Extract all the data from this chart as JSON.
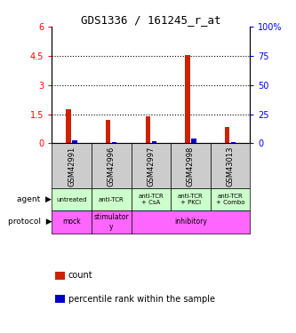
{
  "title": "GDS1336 / 161245_r_at",
  "samples": [
    "GSM42991",
    "GSM42996",
    "GSM42997",
    "GSM42998",
    "GSM43013"
  ],
  "count_values": [
    1.75,
    1.2,
    1.4,
    4.55,
    0.85
  ],
  "percentile_values": [
    3.0,
    1.5,
    2.0,
    4.0,
    1.2
  ],
  "ylim_left": [
    0,
    6
  ],
  "ylim_right": [
    0,
    100
  ],
  "yticks_left": [
    0,
    1.5,
    3.0,
    4.5,
    6.0
  ],
  "yticks_right": [
    0,
    25,
    50,
    75,
    100
  ],
  "ytick_labels_left": [
    "0",
    "1.5",
    "3",
    "4.5",
    "6"
  ],
  "ytick_labels_right": [
    "0",
    "25",
    "50",
    "75",
    "100%"
  ],
  "bar_color_count": "#cc2200",
  "bar_color_percentile": "#0000cc",
  "bar_width": 0.12,
  "bar_gap": 0.04,
  "agent_labels": [
    "untreated",
    "anti-TCR",
    "anti-TCR\n+ CsA",
    "anti-TCR\n+ PKCi",
    "anti-TCR\n+ Combo"
  ],
  "agent_bg": "#ccffcc",
  "protocol_bg": "#ff66ff",
  "sample_label_bg": "#cccccc",
  "legend_count_label": "count",
  "legend_percentile_label": "percentile rank within the sample",
  "dotted_yticks": [
    1.5,
    3.0,
    4.5
  ]
}
